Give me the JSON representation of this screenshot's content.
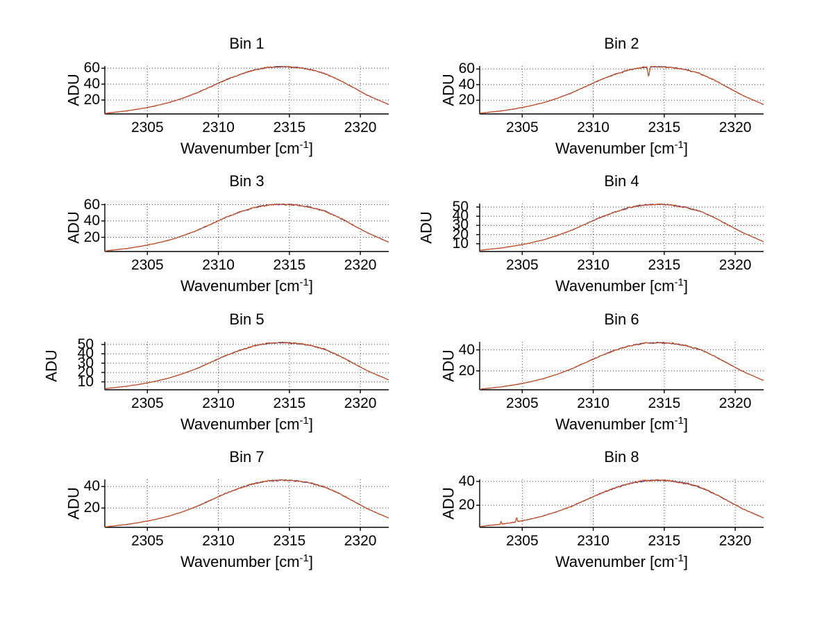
{
  "colors": {
    "background": "#ffffff",
    "trace": "#cc4f1d",
    "under_trace": "#2b2b8f",
    "grid": "#404040",
    "axis": "#000000",
    "text": "#000000"
  },
  "axis": {
    "ylabel": "ADU",
    "xlabel_pre": "Wavenumber [cm",
    "xlabel_sup": "-1",
    "xlabel_post": "]"
  },
  "chart_data": [
    {
      "type": "line",
      "title": "Bin 1",
      "xlabel": "Wavenumber [cm^-1]",
      "ylabel": "ADU",
      "xlim": [
        2302,
        2322
      ],
      "ylim": [
        2.5,
        62.8
      ],
      "xticks": [
        2305,
        2310,
        2315,
        2320
      ],
      "yticks": [
        20,
        40,
        60
      ],
      "x": [
        2302,
        2302.5,
        2303.5,
        2304.5,
        2305.5,
        2306.5,
        2307.5,
        2308.5,
        2309.5,
        2310.5,
        2311.5,
        2312.5,
        2313.5,
        2314.5,
        2315.5,
        2316.5,
        2317.5,
        2318.5,
        2319.5,
        2320.5,
        2322
      ],
      "y": [
        3.1,
        4.3,
        6.2,
        9.0,
        12.4,
        16.7,
        22.3,
        29.1,
        37.2,
        45.3,
        52.1,
        57.7,
        61.1,
        62.0,
        61.1,
        58.3,
        53.3,
        45.3,
        35.7,
        26.0,
        14.3
      ],
      "noise": 0.9,
      "spikes": [],
      "series": [
        {
          "name": "trace-blue",
          "color": "#2b2b8f"
        },
        {
          "name": "trace-orange",
          "color": "#cc4f1d"
        }
      ]
    },
    {
      "type": "line",
      "title": "Bin 2",
      "xlabel": "Wavenumber [cm^-1]",
      "ylabel": "ADU",
      "xlim": [
        2302,
        2322
      ],
      "ylim": [
        2.5,
        63.8
      ],
      "xticks": [
        2305,
        2310,
        2315,
        2320
      ],
      "yticks": [
        20,
        40,
        60
      ],
      "x": [
        2302,
        2302.5,
        2303.5,
        2304.5,
        2305.5,
        2306.5,
        2307.5,
        2308.5,
        2309.5,
        2310.5,
        2311.5,
        2312.5,
        2313.5,
        2314.5,
        2315.5,
        2316.5,
        2317.5,
        2318.5,
        2319.5,
        2320.5,
        2322
      ],
      "y": [
        3.2,
        4.4,
        6.3,
        9.1,
        12.6,
        17.0,
        22.7,
        29.6,
        37.8,
        46.0,
        52.9,
        58.6,
        62.0,
        63.0,
        62.0,
        59.2,
        54.2,
        46.0,
        36.2,
        26.5,
        14.5
      ],
      "noise": 0.9,
      "spikes": [
        {
          "x": 2313.9,
          "dy": -13,
          "w": 0.12
        }
      ],
      "series": [
        {
          "name": "trace-blue",
          "color": "#2b2b8f"
        },
        {
          "name": "trace-orange",
          "color": "#cc4f1d"
        }
      ]
    },
    {
      "type": "line",
      "title": "Bin 3",
      "xlabel": "Wavenumber [cm^-1]",
      "ylabel": "ADU",
      "xlim": [
        2302,
        2322
      ],
      "ylim": [
        2.5,
        61.3
      ],
      "xticks": [
        2305,
        2310,
        2315,
        2320
      ],
      "yticks": [
        20,
        40,
        60
      ],
      "x": [
        2302,
        2302.5,
        2303.5,
        2304.5,
        2305.5,
        2306.5,
        2307.5,
        2308.5,
        2309.5,
        2310.5,
        2311.5,
        2312.5,
        2313.5,
        2314.5,
        2315.5,
        2316.5,
        2317.5,
        2318.5,
        2319.5,
        2320.5,
        2322
      ],
      "y": [
        3.0,
        4.2,
        6.1,
        8.8,
        12.1,
        16.3,
        21.8,
        28.4,
        36.3,
        44.2,
        50.8,
        56.3,
        59.6,
        60.5,
        59.6,
        56.9,
        52.0,
        44.2,
        34.8,
        25.4,
        13.9
      ],
      "noise": 1.0,
      "spikes": [],
      "series": [
        {
          "name": "trace-blue",
          "color": "#2b2b8f"
        },
        {
          "name": "trace-orange",
          "color": "#cc4f1d"
        }
      ]
    },
    {
      "type": "line",
      "title": "Bin 4",
      "xlabel": "Wavenumber [cm^-1]",
      "ylabel": "ADU",
      "xlim": [
        2302,
        2322
      ],
      "ylim": [
        1.5,
        53.8
      ],
      "xticks": [
        2305,
        2310,
        2315,
        2320
      ],
      "yticks": [
        10,
        20,
        30,
        40,
        50
      ],
      "x": [
        2302,
        2302.5,
        2303.5,
        2304.5,
        2305.5,
        2306.5,
        2307.5,
        2308.5,
        2309.5,
        2310.5,
        2311.5,
        2312.5,
        2313.5,
        2314.5,
        2315.5,
        2316.5,
        2317.5,
        2318.5,
        2319.5,
        2320.5,
        2322
      ],
      "y": [
        2.7,
        3.7,
        5.3,
        7.7,
        10.6,
        14.3,
        19.1,
        24.9,
        31.8,
        38.7,
        44.5,
        49.3,
        52.2,
        53.0,
        52.2,
        49.8,
        45.6,
        38.7,
        30.5,
        22.3,
        12.2
      ],
      "noise": 0.8,
      "spikes": [],
      "series": [
        {
          "name": "trace-blue",
          "color": "#2b2b8f"
        },
        {
          "name": "trace-orange",
          "color": "#cc4f1d"
        }
      ]
    },
    {
      "type": "line",
      "title": "Bin 5",
      "xlabel": "Wavenumber [cm^-1]",
      "ylabel": "ADU",
      "xlim": [
        2302,
        2322
      ],
      "ylim": [
        1.5,
        52.8
      ],
      "xticks": [
        2305,
        2310,
        2315,
        2320
      ],
      "yticks": [
        10,
        20,
        30,
        40,
        50
      ],
      "x": [
        2302,
        2302.5,
        2303.5,
        2304.5,
        2305.5,
        2306.5,
        2307.5,
        2308.5,
        2309.5,
        2310.5,
        2311.5,
        2312.5,
        2313.5,
        2314.5,
        2315.5,
        2316.5,
        2317.5,
        2318.5,
        2319.5,
        2320.5,
        2322
      ],
      "y": [
        2.6,
        3.6,
        5.2,
        7.5,
        10.4,
        14.0,
        18.7,
        24.4,
        31.2,
        38.0,
        43.7,
        48.4,
        51.2,
        52.0,
        51.2,
        48.9,
        44.7,
        38.0,
        29.9,
        21.8,
        12.0
      ],
      "noise": 0.8,
      "spikes": [],
      "series": [
        {
          "name": "trace-blue",
          "color": "#2b2b8f"
        },
        {
          "name": "trace-orange",
          "color": "#cc4f1d"
        }
      ]
    },
    {
      "type": "line",
      "title": "Bin 6",
      "xlabel": "Wavenumber [cm^-1]",
      "ylabel": "ADU",
      "xlim": [
        2302,
        2322
      ],
      "ylim": [
        2.0,
        47.7
      ],
      "xticks": [
        2305,
        2310,
        2315,
        2320
      ],
      "yticks": [
        20,
        40
      ],
      "x": [
        2302,
        2302.5,
        2303.5,
        2304.5,
        2305.5,
        2306.5,
        2307.5,
        2308.5,
        2309.5,
        2310.5,
        2311.5,
        2312.5,
        2313.5,
        2314.5,
        2315.5,
        2316.5,
        2317.5,
        2318.5,
        2319.5,
        2320.5,
        2322
      ],
      "y": [
        2.4,
        3.3,
        4.7,
        6.8,
        9.4,
        12.7,
        16.9,
        22.1,
        28.2,
        34.3,
        39.5,
        43.7,
        46.3,
        47.0,
        46.3,
        44.2,
        40.4,
        34.3,
        27.0,
        19.7,
        10.8
      ],
      "noise": 0.75,
      "spikes": [],
      "series": [
        {
          "name": "trace-blue",
          "color": "#2b2b8f"
        },
        {
          "name": "trace-orange",
          "color": "#cc4f1d"
        }
      ]
    },
    {
      "type": "line",
      "title": "Bin 7",
      "xlabel": "Wavenumber [cm^-1]",
      "ylabel": "ADU",
      "xlim": [
        2302,
        2322
      ],
      "ylim": [
        2.0,
        46.7
      ],
      "xticks": [
        2305,
        2310,
        2315,
        2320
      ],
      "yticks": [
        20,
        40
      ],
      "x": [
        2302,
        2302.5,
        2303.5,
        2304.5,
        2305.5,
        2306.5,
        2307.5,
        2308.5,
        2309.5,
        2310.5,
        2311.5,
        2312.5,
        2313.5,
        2314.5,
        2315.5,
        2316.5,
        2317.5,
        2318.5,
        2319.5,
        2320.5,
        2322
      ],
      "y": [
        2.3,
        3.2,
        4.6,
        6.7,
        9.2,
        12.4,
        16.6,
        21.6,
        27.6,
        33.6,
        38.6,
        42.8,
        45.3,
        46.0,
        45.3,
        43.2,
        39.6,
        33.6,
        26.5,
        19.3,
        10.6
      ],
      "noise": 0.75,
      "spikes": [],
      "series": [
        {
          "name": "trace-blue",
          "color": "#2b2b8f"
        },
        {
          "name": "trace-orange",
          "color": "#cc4f1d"
        }
      ]
    },
    {
      "type": "line",
      "title": "Bin 8",
      "xlabel": "Wavenumber [cm^-1]",
      "ylabel": "ADU",
      "xlim": [
        2302,
        2322
      ],
      "ylim": [
        1.5,
        41.7
      ],
      "xticks": [
        2305,
        2310,
        2315,
        2320
      ],
      "yticks": [
        20,
        40
      ],
      "x": [
        2302,
        2302.5,
        2303.5,
        2304.5,
        2305.5,
        2306.5,
        2307.5,
        2308.5,
        2309.5,
        2310.5,
        2311.5,
        2312.5,
        2313.5,
        2314.5,
        2315.5,
        2316.5,
        2317.5,
        2318.5,
        2319.5,
        2320.5,
        2322
      ],
      "y": [
        2.1,
        2.9,
        4.1,
        5.9,
        8.2,
        11.1,
        14.8,
        19.3,
        24.6,
        29.9,
        34.4,
        38.1,
        40.4,
        41.0,
        40.4,
        38.5,
        35.3,
        29.9,
        23.6,
        17.2,
        9.4
      ],
      "noise": 0.8,
      "spikes": [
        {
          "x": 2303.5,
          "dy": 2.2,
          "w": 0.08
        },
        {
          "x": 2304.6,
          "dy": 4.0,
          "w": 0.08
        }
      ],
      "series": [
        {
          "name": "trace-blue",
          "color": "#2b2b8f"
        },
        {
          "name": "trace-orange",
          "color": "#cc4f1d"
        }
      ]
    }
  ]
}
